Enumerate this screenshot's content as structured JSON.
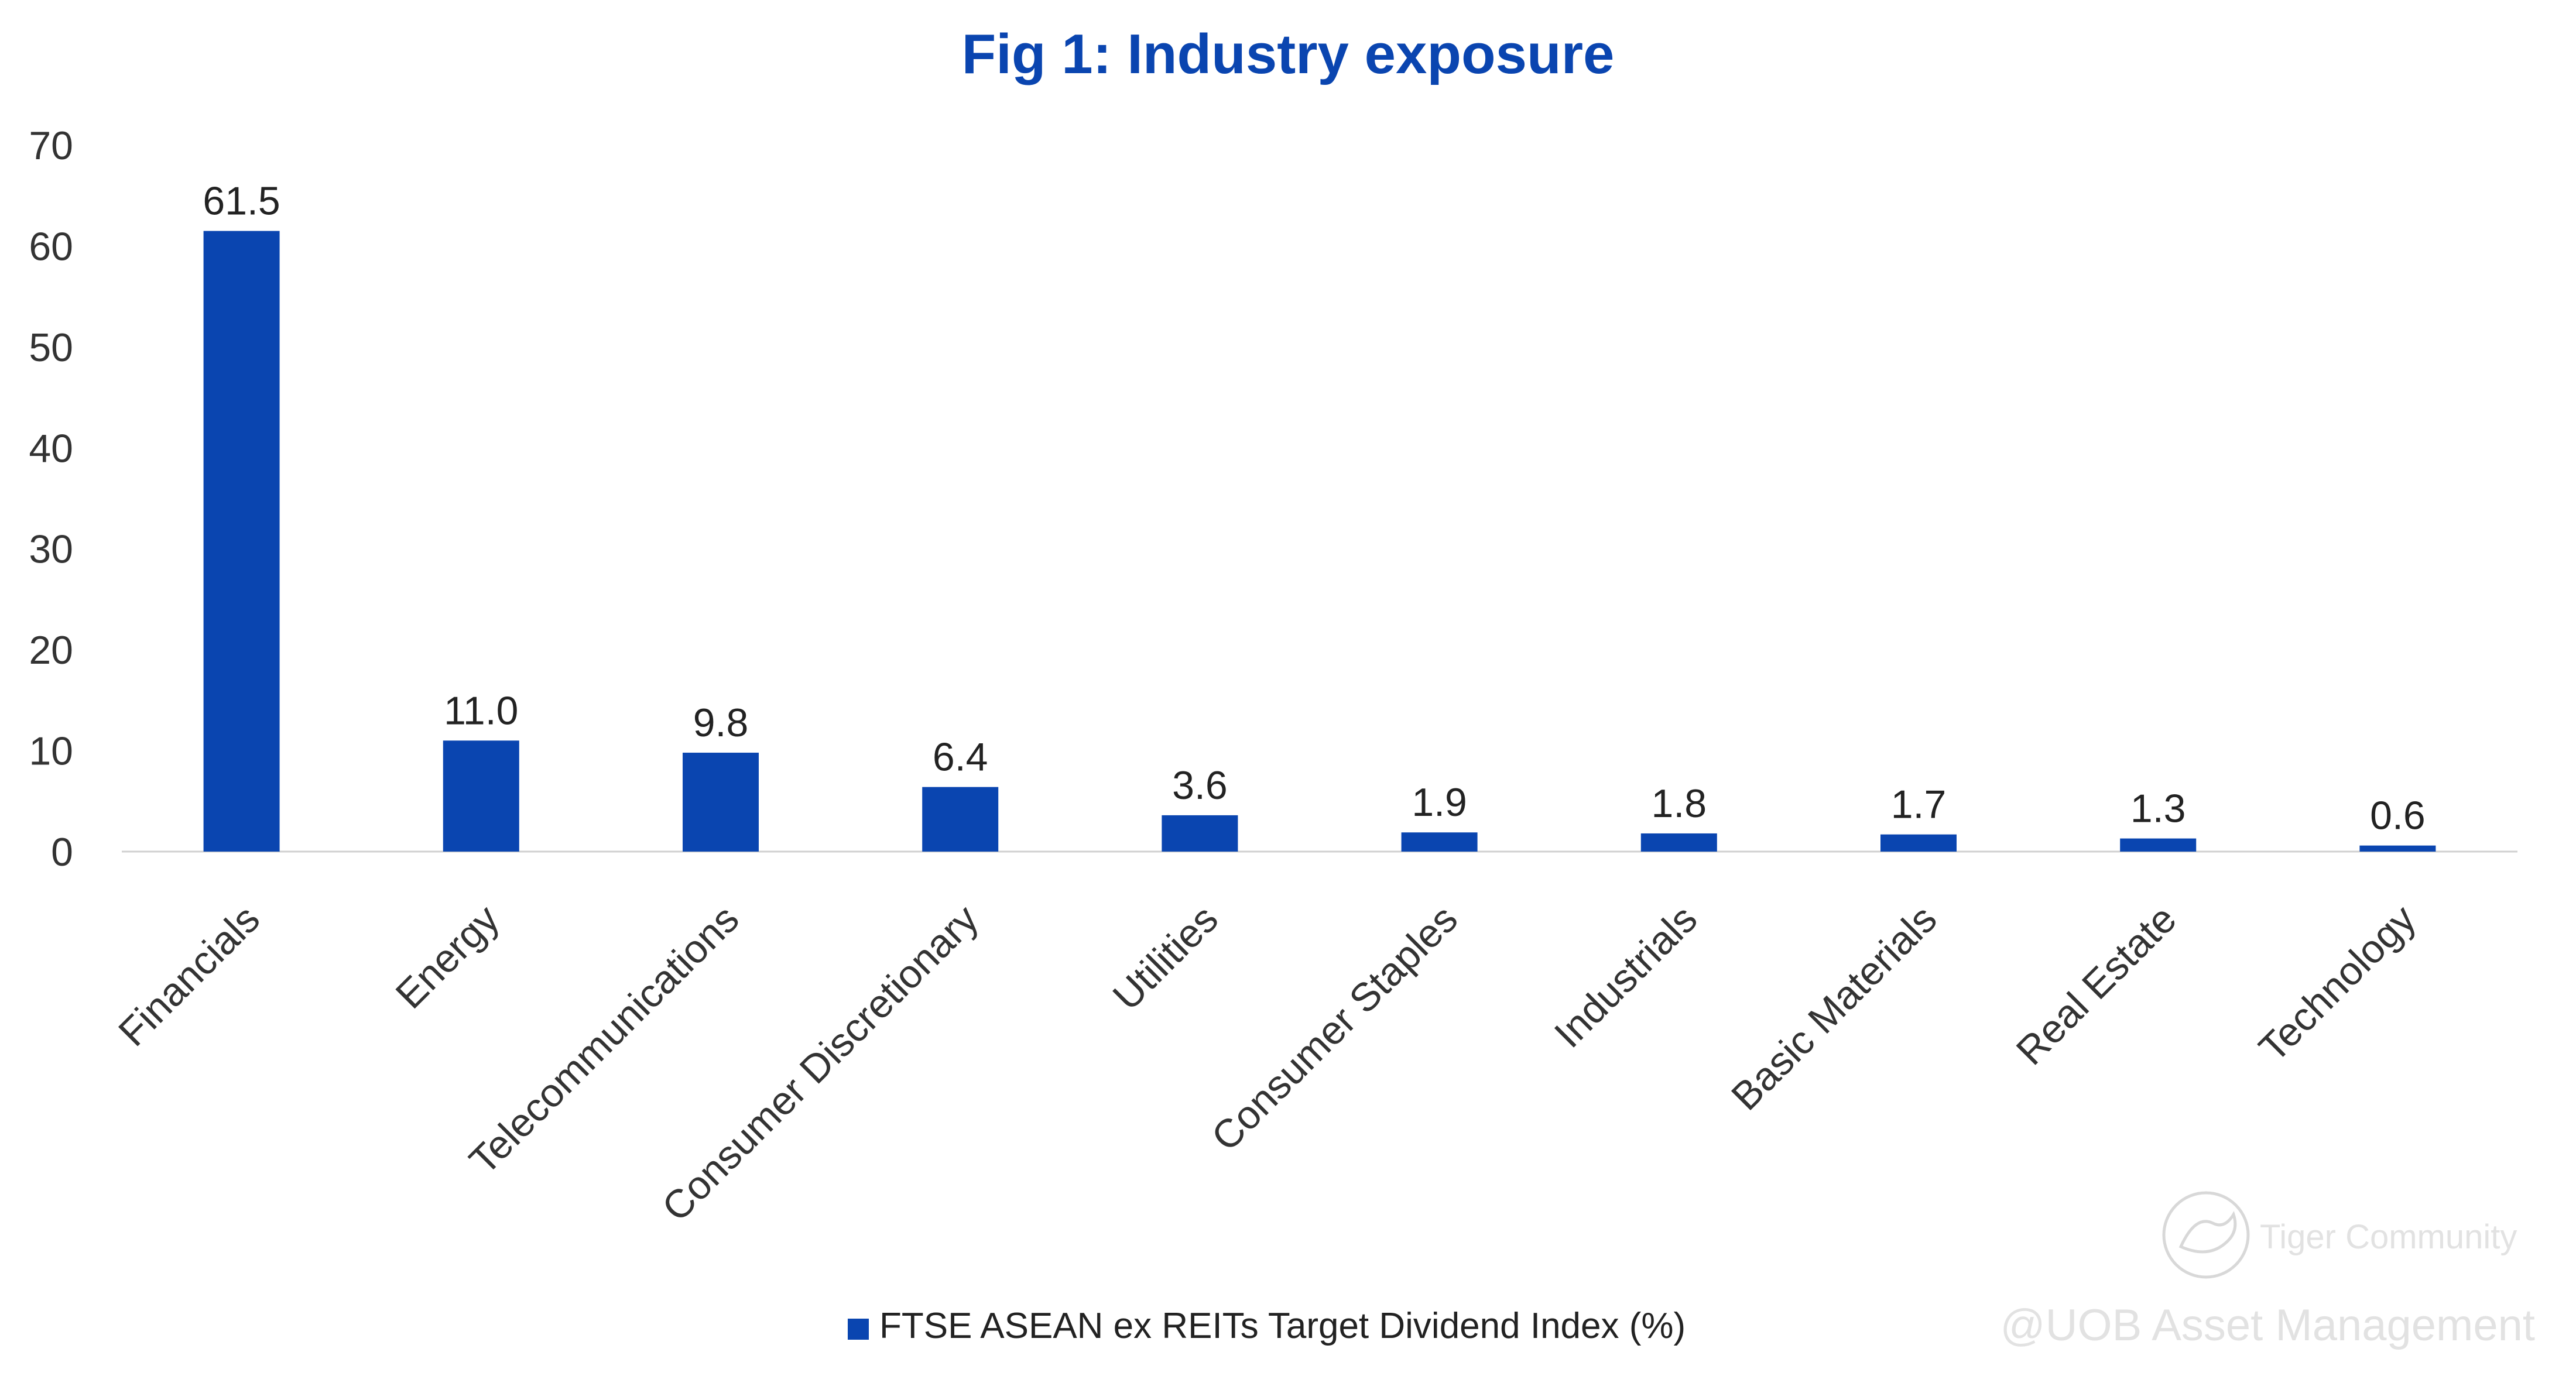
{
  "chart_data": {
    "type": "bar",
    "title": "Fig 1: Industry exposure",
    "categories": [
      "Financials",
      "Energy",
      "Telecommunications",
      "Consumer Discretionary",
      "Utilities",
      "Consumer Staples",
      "Industrials",
      "Basic Materials",
      "Real Estate",
      "Technology"
    ],
    "series": [
      {
        "name": "FTSE ASEAN ex REITs Target Dividend Index (%)",
        "values": [
          61.5,
          11.0,
          9.8,
          6.4,
          3.6,
          1.9,
          1.8,
          1.7,
          1.3,
          0.6
        ],
        "labels": [
          "61.5",
          "11.0",
          "9.8",
          "6.4",
          "3.6",
          "1.9",
          "1.8",
          "1.7",
          "1.3",
          "0.6"
        ],
        "color": "#0a45b0"
      }
    ],
    "yticks": [
      0,
      10,
      20,
      30,
      40,
      50,
      60,
      70
    ],
    "ylim": [
      0,
      70
    ],
    "grid": false,
    "legend": "bottom-center"
  },
  "watermark": {
    "brand": "Tiger Community",
    "credit": "@UOB Asset Management",
    "icon": "tiger-logo-icon"
  }
}
